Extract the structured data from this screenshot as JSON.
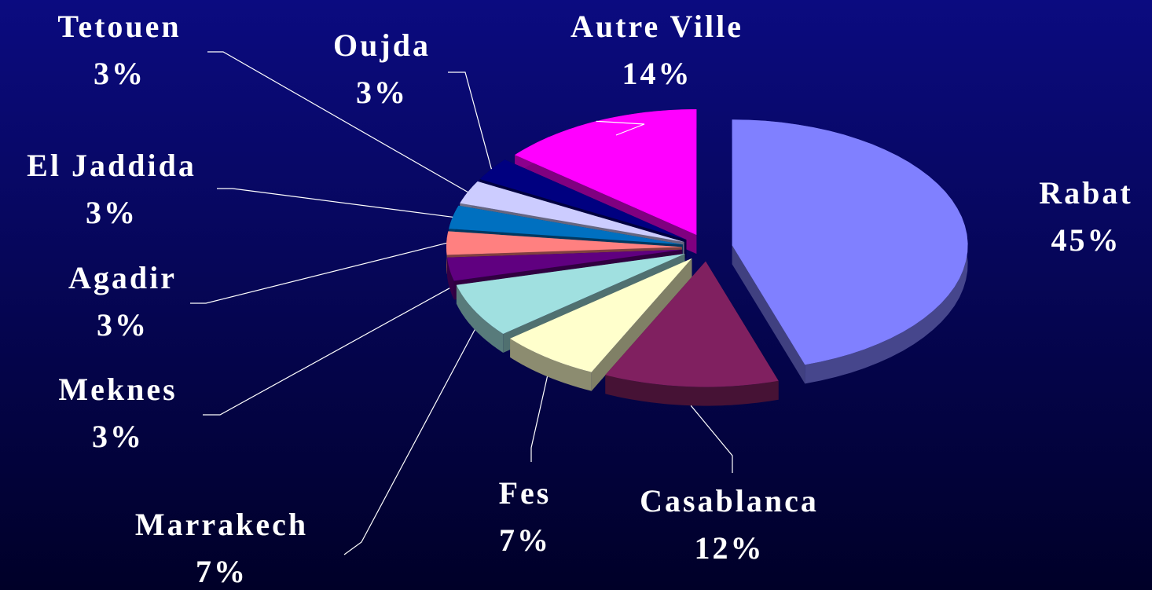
{
  "chart_data": {
    "type": "pie",
    "categories": [
      "Rabat",
      "Casablanca",
      "Fes",
      "Marrakech",
      "Meknes",
      "Agadir",
      "El Jaddida",
      "Tetouen",
      "Oujda",
      "Autre Ville"
    ],
    "values": [
      45,
      12,
      7,
      7,
      3,
      3,
      3,
      3,
      3,
      14
    ],
    "value_labels": [
      "45%",
      "12%",
      "7%",
      "7%",
      "3%",
      "3%",
      "3%",
      "3%",
      "3%",
      "14%"
    ],
    "colors": [
      "#8080ff",
      "#802060",
      "#ffffcc",
      "#a0e0e0",
      "#600080",
      "#ff8080",
      "#0070c0",
      "#ccccff",
      "#000080",
      "#ff00ff"
    ]
  }
}
